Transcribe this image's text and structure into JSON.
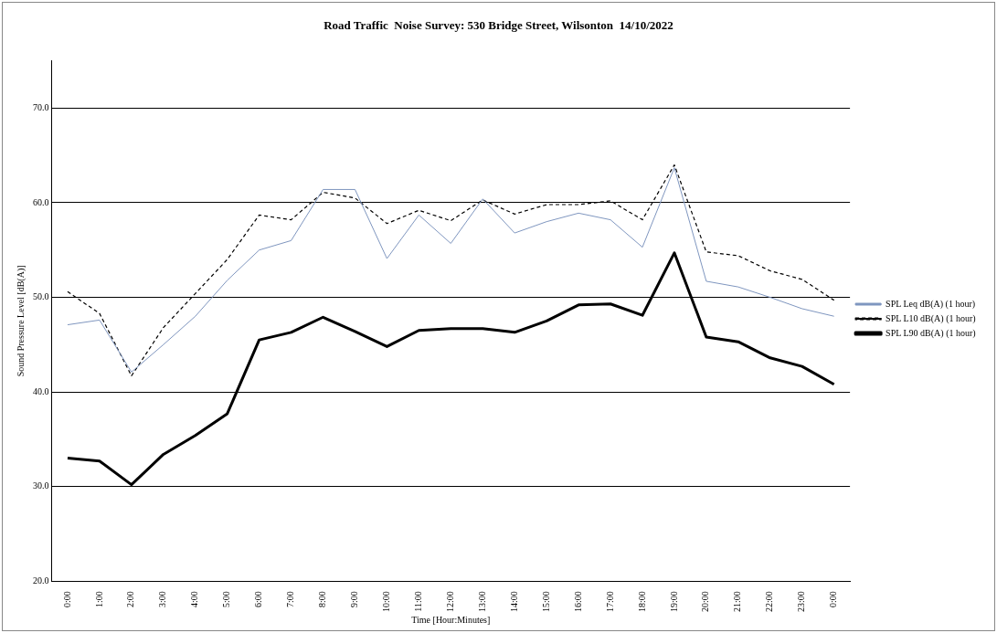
{
  "chart_data": {
    "type": "line",
    "title": "Road Traffic  Noise Survey: 530 Bridge Street, Wilsonton  14/10/2022",
    "xlabel": "Time [Hour:Minutes]",
    "ylabel": "Sound Pressure Level [dB(A)]",
    "categories": [
      "0:00",
      "1:00",
      "2:00",
      "3:00",
      "4:00",
      "5:00",
      "6:00",
      "7:00",
      "8:00",
      "9:00",
      "10:00",
      "11:00",
      "12:00",
      "13:00",
      "14:00",
      "15:00",
      "16:00",
      "17:00",
      "18:00",
      "19:00",
      "20:00",
      "21:00",
      "22:00",
      "23:00",
      "0:00"
    ],
    "series": [
      {
        "name": "SPL Leq dB(A) (1 hour)",
        "color": "#7f96bf",
        "line_style": "solid",
        "values": [
          47.1,
          47.6,
          42.1,
          45.0,
          48.0,
          51.8,
          55.0,
          56.0,
          61.4,
          61.4,
          54.1,
          58.7,
          55.7,
          60.4,
          56.8,
          58.0,
          58.9,
          58.2,
          55.3,
          63.7,
          51.7,
          51.1,
          50.0,
          48.8,
          48.0
        ]
      },
      {
        "name": "SPL L10 dB(A) (1 hour)",
        "color": "#000000",
        "line_style": "dashed",
        "values": [
          50.6,
          48.3,
          41.7,
          46.8,
          50.4,
          54.0,
          58.7,
          58.2,
          61.1,
          60.5,
          57.8,
          59.2,
          58.1,
          60.3,
          58.8,
          59.8,
          59.8,
          60.2,
          58.2,
          64.0,
          54.8,
          54.4,
          52.8,
          51.9,
          49.7
        ]
      },
      {
        "name": "SPL L90 dB(A) (1 hour)",
        "color": "#000000",
        "line_style": "solid",
        "values": [
          33.0,
          32.7,
          30.2,
          33.4,
          35.4,
          37.7,
          45.5,
          46.3,
          47.9,
          46.4,
          44.8,
          46.5,
          46.7,
          46.7,
          46.3,
          47.5,
          49.2,
          49.3,
          48.1,
          54.7,
          45.8,
          45.3,
          43.6,
          42.7,
          40.8
        ]
      }
    ],
    "ylim": [
      20,
      75
    ],
    "yticks": [
      {
        "value": 20,
        "label": "20.0"
      },
      {
        "value": 30,
        "label": "30.0"
      },
      {
        "value": 40,
        "label": "40.0"
      },
      {
        "value": 50,
        "label": "50.0"
      },
      {
        "value": 60,
        "label": "60.0"
      },
      {
        "value": 70,
        "label": "70.0"
      }
    ],
    "grid": "y",
    "legend": "right",
    "marker": "none"
  }
}
